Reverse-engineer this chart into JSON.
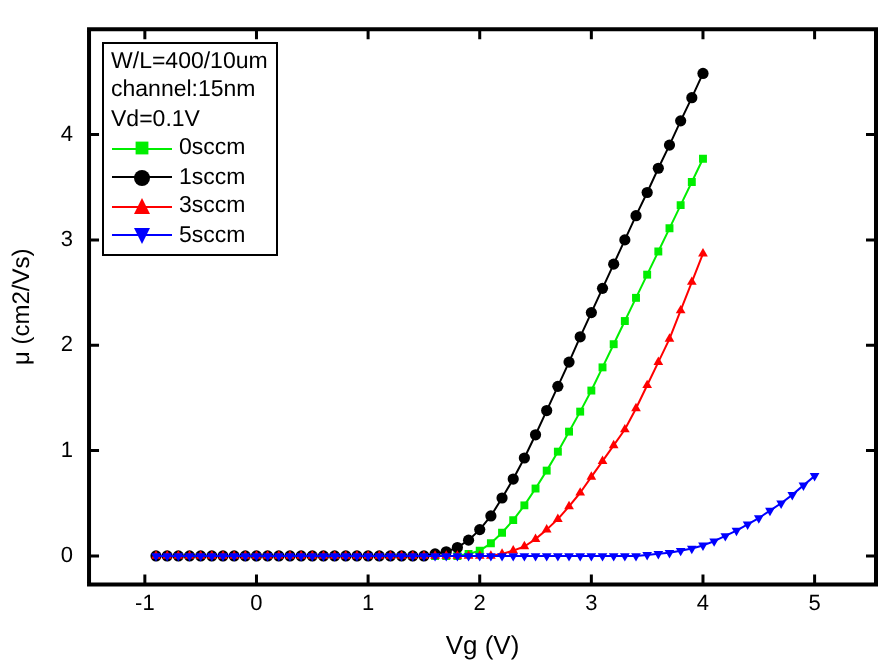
{
  "chart_data": {
    "type": "line",
    "xlabel": "Vg (V)",
    "ylabel": "μ (cm2/Vs)",
    "legend_title": "W/L=400/10um\nchannel:15nm\nVd=0.1V",
    "legend": "top left",
    "grid": false,
    "line_style": "solid",
    "xlim": [
      -1.5,
      5.55
    ],
    "xticks": [
      -1,
      0,
      1,
      2,
      3,
      4,
      5
    ],
    "ylim": [
      -0.27,
      5
    ],
    "yticks": [
      0,
      1,
      2,
      3,
      4
    ],
    "x": [
      -0.9,
      -0.8,
      -0.7,
      -0.6,
      -0.5,
      -0.4,
      -0.3,
      -0.2,
      -0.1,
      0,
      0.1,
      0.2,
      0.3,
      0.4,
      0.5,
      0.6,
      0.7,
      0.8,
      0.9,
      1,
      1.1,
      1.2,
      1.3,
      1.4,
      1.5,
      1.6,
      1.7,
      1.8,
      1.9,
      2,
      2.1,
      2.2,
      2.3,
      2.4,
      2.5,
      2.6,
      2.7,
      2.8,
      2.9,
      3,
      3.1,
      3.2,
      3.3,
      3.4,
      3.5,
      3.6,
      3.7,
      3.8,
      3.9,
      4
    ],
    "series": [
      {
        "name": "0sccm",
        "color": "#00ee00",
        "marker": "square",
        "values": [
          null,
          null,
          null,
          null,
          null,
          null,
          null,
          null,
          null,
          null,
          null,
          null,
          null,
          null,
          null,
          null,
          null,
          null,
          null,
          null,
          null,
          null,
          null,
          0,
          0,
          0,
          0,
          0,
          0.02,
          0.05,
          0.12,
          0.22,
          0.34,
          0.48,
          0.64,
          0.81,
          0.99,
          1.18,
          1.37,
          1.57,
          1.79,
          2.01,
          2.23,
          2.45,
          2.67,
          2.89,
          3.11,
          3.33,
          3.55,
          3.77
        ]
      },
      {
        "name": "1sccm",
        "color": "#000000",
        "marker": "circle",
        "values": [
          0,
          0,
          0,
          0,
          0,
          0,
          0,
          0,
          0,
          0,
          0,
          0,
          0,
          0,
          0,
          0,
          0,
          0,
          0,
          0,
          0,
          0,
          0,
          0,
          0,
          0.02,
          0.04,
          0.08,
          0.15,
          0.25,
          0.38,
          0.55,
          0.73,
          0.93,
          1.15,
          1.38,
          1.61,
          1.84,
          2.08,
          2.31,
          2.54,
          2.77,
          3,
          3.23,
          3.45,
          3.68,
          3.9,
          4.13,
          4.35,
          4.58
        ]
      },
      {
        "name": "3sccm",
        "color": "#ff0000",
        "marker": "triangle",
        "values": [
          0,
          0,
          0,
          0,
          0,
          0,
          0,
          0,
          0,
          0,
          0,
          0,
          0,
          0,
          0,
          0,
          0,
          0,
          0,
          0,
          0,
          0,
          0,
          0,
          0,
          0,
          0,
          0,
          0,
          0,
          0,
          0.02,
          0.05,
          0.09,
          0.16,
          0.25,
          0.35,
          0.47,
          0.6,
          0.75,
          0.9,
          1.05,
          1.2,
          1.4,
          1.62,
          1.84,
          2.06,
          2.33,
          2.6,
          2.87
        ]
      },
      {
        "name": "5sccm",
        "color": "#0000ff",
        "marker": "triangle-down",
        "x": [
          -0.9,
          -0.8,
          -0.7,
          -0.6,
          -0.5,
          -0.4,
          -0.3,
          -0.2,
          -0.1,
          0,
          0.1,
          0.2,
          0.3,
          0.4,
          0.5,
          0.6,
          0.7,
          0.8,
          0.9,
          1,
          1.1,
          1.2,
          1.3,
          1.4,
          1.5,
          1.6,
          1.7,
          1.8,
          1.9,
          2,
          2.1,
          2.2,
          2.3,
          2.4,
          2.5,
          2.6,
          2.7,
          2.8,
          2.9,
          3,
          3.1,
          3.2,
          3.3,
          3.4,
          3.5,
          3.6,
          3.7,
          3.8,
          3.9,
          4,
          4.1,
          4.2,
          4.3,
          4.4,
          4.5,
          4.6,
          4.7,
          4.8,
          4.9,
          5
        ],
        "values": [
          0,
          0,
          0,
          0,
          0,
          0,
          0,
          0,
          0,
          0,
          0,
          0,
          0,
          0,
          0,
          0,
          0,
          0,
          0,
          0,
          0,
          0,
          0,
          0,
          0,
          0,
          0,
          0,
          0,
          0,
          0,
          0,
          0,
          0,
          0,
          0,
          0,
          0,
          0,
          0,
          0,
          0,
          0,
          0,
          0.01,
          0.02,
          0.03,
          0.05,
          0.07,
          0.1,
          0.14,
          0.19,
          0.24,
          0.3,
          0.36,
          0.43,
          0.5,
          0.58,
          0.67,
          0.76
        ]
      }
    ]
  }
}
